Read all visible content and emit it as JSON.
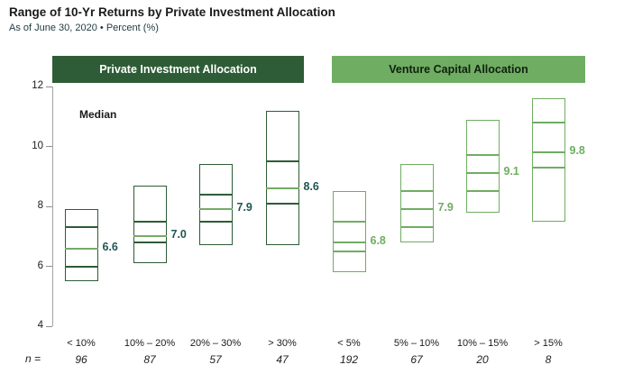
{
  "title": "Range of 10-Yr Returns by Private Investment Allocation",
  "subtitle": "As of June 30, 2020 • Percent (%)",
  "median_legend_label": "Median",
  "n_label": "n =",
  "colors": {
    "dark_green": "#2e5c36",
    "light_green": "#6fad62",
    "pi_median_line": "#74ab66",
    "pi_median_text": "#1e5650",
    "vc_median_text": "#6fad62",
    "axis_gray": "#a3a3a3"
  },
  "groups": [
    {
      "id": "pi",
      "label": "Private Investment Allocation",
      "style": "dark"
    },
    {
      "id": "vc",
      "label": "Venture Capital Allocation",
      "style": "light"
    }
  ],
  "chart_data": {
    "type": "box-range",
    "title": "Range of 10-Yr Returns by Private Investment Allocation",
    "subtitle": "As of June 30, 2020 • Percent (%)",
    "ylabel": "Percent (%)",
    "ylim": [
      4,
      12
    ],
    "yticks": [
      12,
      10,
      8,
      6,
      4
    ],
    "legend": [
      "Median"
    ],
    "boxes": [
      {
        "group": "pi",
        "category": "< 10%",
        "n": "96",
        "low": 5.5,
        "q1": 6.0,
        "median": 6.6,
        "q3": 7.3,
        "high": 7.9,
        "median_label": "6.6"
      },
      {
        "group": "pi",
        "category": "10% – 20%",
        "n": "87",
        "low": 6.1,
        "q1": 6.8,
        "median": 7.0,
        "q3": 7.5,
        "high": 8.7,
        "median_label": "7.0"
      },
      {
        "group": "pi",
        "category": "20% – 30%",
        "n": "57",
        "low": 6.7,
        "q1": 7.5,
        "median": 7.9,
        "q3": 8.4,
        "high": 9.4,
        "median_label": "7.9"
      },
      {
        "group": "pi",
        "category": "> 30%",
        "n": "47",
        "low": 6.7,
        "q1": 8.1,
        "median": 8.6,
        "q3": 9.5,
        "high": 11.2,
        "median_label": "8.6"
      },
      {
        "group": "vc",
        "category": "< 5%",
        "n": "192",
        "low": 5.8,
        "q1": 6.5,
        "median": 6.8,
        "q3": 7.5,
        "high": 8.5,
        "median_label": "6.8"
      },
      {
        "group": "vc",
        "category": "5% – 10%",
        "n": "67",
        "low": 6.8,
        "q1": 7.3,
        "median": 7.9,
        "q3": 8.5,
        "high": 9.4,
        "median_label": "7.9"
      },
      {
        "group": "vc",
        "category": "10% – 15%",
        "n": "20",
        "low": 7.8,
        "q1": 8.5,
        "median": 9.1,
        "q3": 9.7,
        "high": 10.9,
        "median_label": "9.1"
      },
      {
        "group": "vc",
        "category": "> 15%",
        "n": "8",
        "low": 7.5,
        "q1": 9.3,
        "median": 9.8,
        "q3": 10.8,
        "high": 11.6,
        "median_label": "9.8"
      }
    ]
  }
}
